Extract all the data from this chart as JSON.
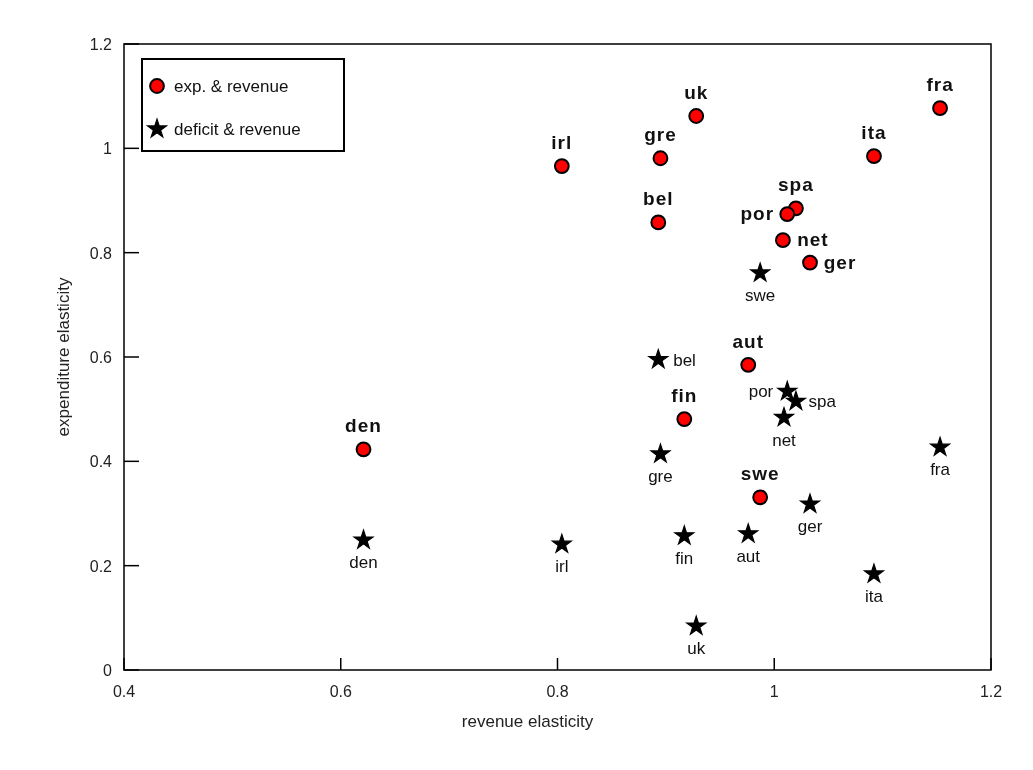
{
  "chart_data": {
    "type": "scatter",
    "xlabel": "revenue elasticity",
    "ylabel": "expenditure elasticity",
    "xlim": [
      0.4,
      1.2
    ],
    "xticks": [
      0.4,
      0.6,
      0.8,
      1,
      1.2
    ],
    "ylim": [
      0,
      1.2
    ],
    "yticks": [
      0,
      0.2,
      0.4,
      0.6,
      0.8,
      1,
      1.2
    ],
    "legend": "top left",
    "series": [
      {
        "name": "exp. & revenue",
        "color": "#ff0000",
        "marker": "circle",
        "x": [
          0.804,
          0.928,
          0.895,
          0.893,
          1.153,
          1.092,
          1.02,
          1.012,
          1.008,
          1.033,
          0.976,
          0.917,
          0.987,
          0.621
        ],
        "values": [
          0.966,
          1.062,
          0.981,
          0.858,
          1.077,
          0.985,
          0.885,
          0.874,
          0.824,
          0.781,
          0.585,
          0.481,
          0.331,
          0.423
        ]
      },
      {
        "name": "deficit & revenue",
        "color": "#000000",
        "marker": "star",
        "x": [
          0.621,
          0.804,
          0.987,
          0.893,
          1.012,
          1.02,
          1.009,
          0.895,
          1.153,
          1.033,
          0.917,
          0.976,
          1.092,
          0.928
        ],
        "values": [
          0.249,
          0.241,
          0.761,
          0.595,
          0.534,
          0.515,
          0.484,
          0.414,
          0.427,
          0.318,
          0.257,
          0.261,
          0.184,
          0.084
        ]
      }
    ],
    "annotations": [
      {
        "text": "irl",
        "x": 0.804,
        "y": 0.966
      },
      {
        "text": "uk",
        "x": 0.928,
        "y": 1.062
      },
      {
        "text": "gre",
        "x": 0.895,
        "y": 0.981
      },
      {
        "text": "bel",
        "x": 0.893,
        "y": 0.858
      },
      {
        "text": "fra",
        "x": 1.153,
        "y": 1.077
      },
      {
        "text": "ita",
        "x": 1.092,
        "y": 0.985
      },
      {
        "text": "spa",
        "x": 1.02,
        "y": 0.885
      },
      {
        "text": "por",
        "x": 1.012,
        "y": 0.874
      },
      {
        "text": "net",
        "x": 1.008,
        "y": 0.824
      },
      {
        "text": "ger",
        "x": 1.033,
        "y": 0.781
      },
      {
        "text": "aut",
        "x": 0.976,
        "y": 0.585
      },
      {
        "text": "fin",
        "x": 0.917,
        "y": 0.481
      },
      {
        "text": "swe",
        "x": 0.987,
        "y": 0.331
      },
      {
        "text": "den",
        "x": 0.621,
        "y": 0.423
      },
      {
        "text": "den",
        "x": 0.621,
        "y": 0.249
      },
      {
        "text": "irl",
        "x": 0.804,
        "y": 0.241
      },
      {
        "text": "swe",
        "x": 0.987,
        "y": 0.761
      },
      {
        "text": "bel",
        "x": 0.893,
        "y": 0.595
      },
      {
        "text": "por",
        "x": 1.012,
        "y": 0.534
      },
      {
        "text": "spa",
        "x": 1.02,
        "y": 0.515
      },
      {
        "text": "net",
        "x": 1.009,
        "y": 0.484
      },
      {
        "text": "gre",
        "x": 0.895,
        "y": 0.414
      },
      {
        "text": "fra",
        "x": 1.153,
        "y": 0.427
      },
      {
        "text": "ger",
        "x": 1.033,
        "y": 0.318
      },
      {
        "text": "fin",
        "x": 0.917,
        "y": 0.257
      },
      {
        "text": "aut",
        "x": 0.976,
        "y": 0.261
      },
      {
        "text": "ita",
        "x": 1.092,
        "y": 0.184
      },
      {
        "text": "uk",
        "x": 0.928,
        "y": 0.084
      }
    ]
  }
}
